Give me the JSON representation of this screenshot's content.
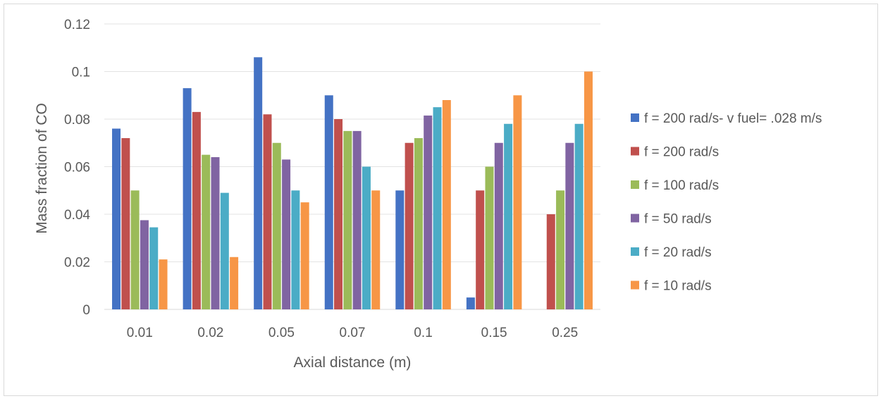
{
  "chart_data": {
    "type": "bar",
    "title": "",
    "xlabel": "Axial distance (m)",
    "ylabel": "Mass fraction of CO",
    "ylim": [
      0,
      0.12
    ],
    "yticks": [
      "0",
      "0.02",
      "0.04",
      "0.06",
      "0.08",
      "0.1",
      "0.12"
    ],
    "ytick_values": [
      0,
      0.02,
      0.04,
      0.06,
      0.08,
      0.1,
      0.12
    ],
    "categories": [
      "0.01",
      "0.02",
      "0.05",
      "0.07",
      "0.1",
      "0.15",
      "0.25"
    ],
    "grid": true,
    "legend_position": "right",
    "series": [
      {
        "name": "f = 200 rad/s- v fuel= .028 m/s",
        "color": "#4472c4",
        "values": [
          0.076,
          0.093,
          0.106,
          0.09,
          0.05,
          0.005,
          0
        ]
      },
      {
        "name": "f = 200 rad/s",
        "color": "#c0504d",
        "values": [
          0.072,
          0.083,
          0.082,
          0.08,
          0.07,
          0.05,
          0.04
        ]
      },
      {
        "name": "f = 100 rad/s",
        "color": "#9bbb59",
        "values": [
          0.05,
          0.065,
          0.07,
          0.075,
          0.072,
          0.06,
          0.05
        ]
      },
      {
        "name": "f = 50 rad/s",
        "color": "#8064a2",
        "values": [
          0.0375,
          0.064,
          0.063,
          0.075,
          0.0815,
          0.07,
          0.07
        ]
      },
      {
        "name": "f = 20 rad/s",
        "color": "#4bacc6",
        "values": [
          0.0345,
          0.049,
          0.05,
          0.06,
          0.085,
          0.078,
          0.078
        ]
      },
      {
        "name": "f = 10 rad/s",
        "color": "#f79646",
        "values": [
          0.021,
          0.022,
          0.045,
          0.05,
          0.088,
          0.09,
          0.1
        ]
      }
    ]
  }
}
